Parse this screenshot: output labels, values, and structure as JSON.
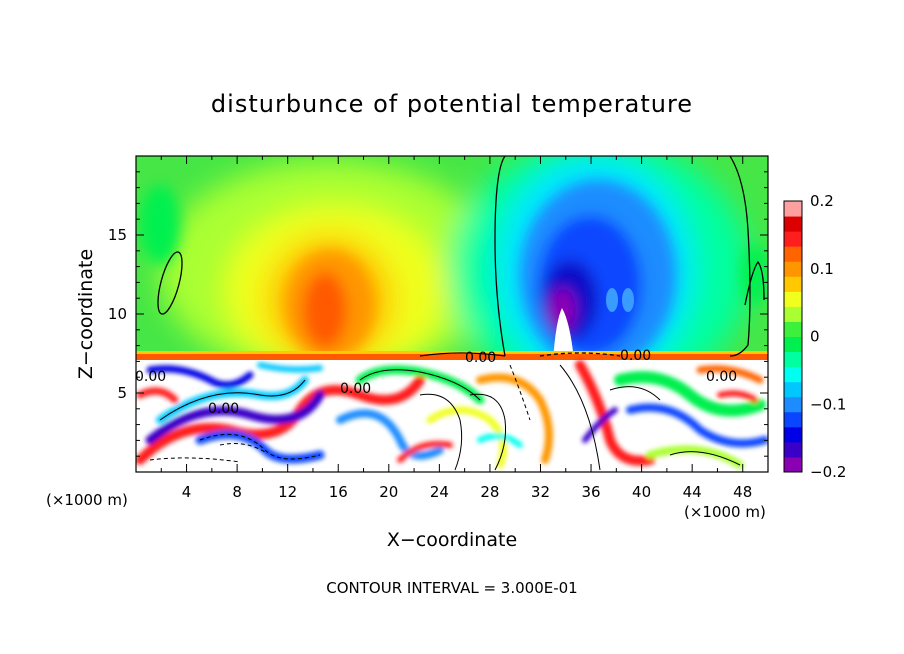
{
  "chart_data": {
    "type": "heatmap",
    "title": "disturbunce of potential temperature",
    "xlabel": "X−coordinate",
    "ylabel": "Z−coordinate",
    "x_unit_left": "(×1000 m)",
    "x_unit_right": "(×1000 m)",
    "xlim": [
      0,
      50
    ],
    "ylim": [
      0,
      20
    ],
    "x_ticks": [
      4,
      8,
      12,
      16,
      20,
      24,
      28,
      32,
      36,
      40,
      44,
      48
    ],
    "x_tick_labels": [
      "4",
      "8",
      "12",
      "16",
      "20",
      "24",
      "28",
      "32",
      "36",
      "40",
      "44",
      "48"
    ],
    "y_ticks": [
      5,
      10,
      15
    ],
    "y_tick_labels": [
      "5",
      "10",
      "15"
    ],
    "colorbar": {
      "min": -0.2,
      "max": 0.2,
      "tick_values": [
        0.2,
        0.1,
        0,
        -0.1,
        -0.2
      ],
      "tick_labels": [
        "0.2",
        "0.1",
        "0",
        "−0.1",
        "−0.2"
      ],
      "colors": [
        "#8c00b4",
        "#3a00c8",
        "#0000e6",
        "#0a46ff",
        "#1e8cff",
        "#00c8ff",
        "#00fff0",
        "#00ffa0",
        "#00f050",
        "#3cf03c",
        "#aaff32",
        "#f0ff1e",
        "#ffc800",
        "#ff9600",
        "#ff6400",
        "#ff1e1e",
        "#dc0000",
        "#ffa0a0"
      ]
    },
    "contour_labels": [
      "0.00",
      "0.00",
      "0.00",
      "0.00",
      "0.00",
      "0.00"
    ],
    "contour_interval_note": "CONTOUR INTERVAL = 3.000E-01",
    "regions": [
      {
        "name": "upper background",
        "x": [
          0,
          50
        ],
        "z": [
          7.3,
          20
        ],
        "value": 0.02
      },
      {
        "name": "warm anomaly",
        "center": [
          14.5,
          11.5
        ],
        "value": 0.14
      },
      {
        "name": "cold anomaly",
        "center": [
          34,
          13
        ],
        "value": -0.19
      },
      {
        "name": "lower turbulent layer",
        "x": [
          0,
          50
        ],
        "z": [
          0,
          7.3
        ],
        "value": "mixed"
      }
    ],
    "grid": false
  }
}
